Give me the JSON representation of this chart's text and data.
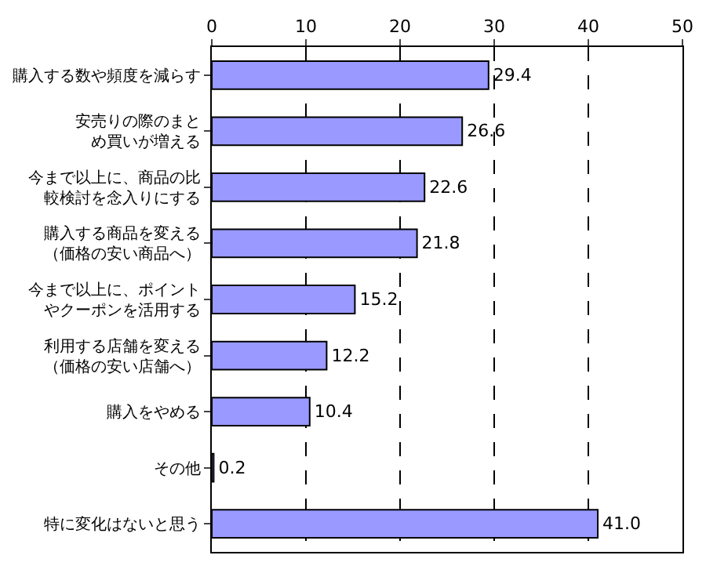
{
  "chart_data": {
    "type": "bar",
    "orientation": "horizontal",
    "categories": [
      "購入する数や頻度を減らす",
      "安売りの際のまとめ買いが増える",
      "今まで以上に、商品の比較検討を念入りにする",
      "購入する商品を変える（価格の安い商品へ）",
      "今まで以上に、ポイントやクーポンを活用する",
      "利用する店舗を変える（価格の安い店舗へ）",
      "購入をやめる",
      "その他",
      "特に変化はないと思う"
    ],
    "values": [
      29.4,
      26.6,
      22.6,
      21.8,
      15.2,
      12.2,
      10.4,
      0.2,
      41.0
    ],
    "value_labels": [
      "29.4",
      "26.6",
      "22.6",
      "21.8",
      "15.2",
      "12.2",
      "10.4",
      "0.2",
      "41.0"
    ],
    "color": "#9999ff",
    "xlim": [
      0,
      50
    ],
    "xticks": [
      0,
      10,
      20,
      30,
      40,
      50
    ],
    "grid": "x",
    "legend": false
  }
}
